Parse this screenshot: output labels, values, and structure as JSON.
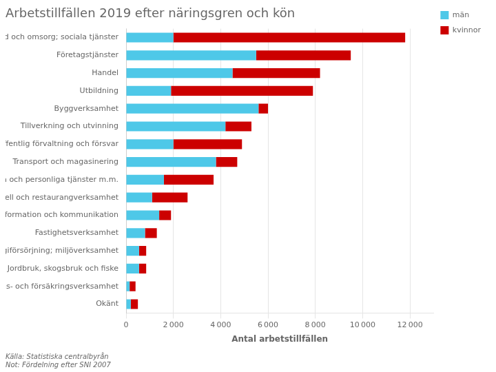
{
  "chart_data": {
    "type": "bar",
    "orientation": "horizontal",
    "stacked": true,
    "title": "Arbetstillfällen 2019 efter näringsgren och kön",
    "categories": [
      "Vård och omsorg; sociala tjänster",
      "Företagstjänster",
      "Handel",
      "Utbildning",
      "Byggverksamhet",
      "Tillverkning och utvinning",
      "Offentlig förvaltning och försvar",
      "Transport och magasinering",
      "Kulturella och personliga tjänster m.m.",
      "Hotell och restaurangverksamhet",
      "Information och kommunikation",
      "Fastighetsverksamhet",
      "Energiförsörjning; miljöverksamhet",
      "Jordbruk, skogsbruk och fiske",
      "Finans- och försäkringsverksamhet",
      "Okänt"
    ],
    "series": [
      {
        "name": "män",
        "color": "#4EC8E8",
        "values": [
          2000,
          5500,
          4500,
          1900,
          5600,
          4200,
          2000,
          3800,
          1600,
          1100,
          1400,
          800,
          550,
          550,
          150,
          200
        ]
      },
      {
        "name": "kvinnor",
        "color": "#CC0000",
        "values": [
          9800,
          4000,
          3700,
          6000,
          400,
          1100,
          2900,
          900,
          2100,
          1500,
          500,
          500,
          300,
          300,
          250,
          300
        ]
      }
    ],
    "xlabel": "Antal arbetstillfällen",
    "xlim": [
      0,
      13000
    ],
    "xticks": [
      0,
      {
        "value": 2000,
        "label": "2 000"
      },
      {
        "value": 4000,
        "label": "4 000"
      },
      {
        "value": 6000,
        "label": "6 000"
      },
      {
        "value": 8000,
        "label": "8 000"
      },
      {
        "value": 10000,
        "label": "10 000"
      },
      {
        "value": 12000,
        "label": "12 000"
      }
    ],
    "grid": true,
    "legend": "upper right",
    "annotations": [
      "Källa: Statistiska centralbyrån\nNot: Fördelning efter SNI 2007"
    ]
  }
}
